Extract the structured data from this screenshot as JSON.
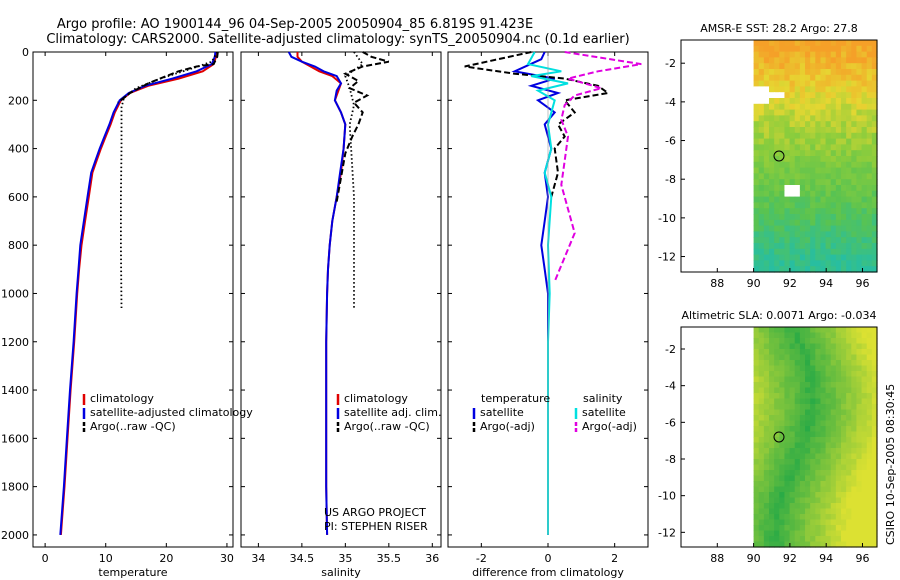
{
  "title": {
    "line1": "Argo profile: AO 1900144_96 04-Sep-2005 20050904_85 6.819S 91.423E",
    "line2": "Climatology: CARS2000. Satellite-adjusted climatology: synTS_20050904.nc (0.1d earlier)"
  },
  "side_label": "CSIRO 10-Sep-2005 08:30:45",
  "colors": {
    "clim": "#e00000",
    "sat": "#0000e0",
    "argo": "#000000",
    "sat_s": "#00e0e0",
    "argo_s": "#e000e0"
  },
  "chart_data": [
    {
      "type": "line",
      "name": "temperature",
      "xlabel": "temperature",
      "xlim": [
        -2,
        31
      ],
      "ylim": [
        0,
        2050
      ],
      "y_inverted": true,
      "xticks": [
        0,
        10,
        20,
        30
      ],
      "yticks": [
        0,
        200,
        400,
        600,
        800,
        1000,
        1200,
        1400,
        1600,
        1800,
        2000
      ],
      "series": [
        {
          "name": "climatology",
          "key": "clim",
          "style": "solid",
          "x": [
            28.3,
            28.2,
            27.8,
            26,
            22,
            17,
            14,
            12.5,
            11.5,
            10.8,
            10,
            9.2,
            8.5,
            7.8,
            7.2,
            6.6,
            6,
            5.6,
            5.3,
            4.8,
            4.2,
            3.7,
            3.2,
            2.6
          ],
          "y": [
            0,
            20,
            50,
            80,
            110,
            140,
            170,
            200,
            250,
            300,
            350,
            400,
            450,
            500,
            600,
            700,
            800,
            900,
            1000,
            1200,
            1400,
            1600,
            1800,
            2000
          ]
        },
        {
          "name": "satellite-adjusted climatology",
          "key": "sat",
          "style": "solid",
          "x": [
            28.1,
            28,
            27.5,
            25,
            21,
            16.5,
            13.8,
            12.3,
            11.3,
            10.6,
            9.8,
            9,
            8.3,
            7.6,
            7,
            6.4,
            5.8,
            5.5,
            5.2,
            4.7,
            4.1,
            3.6,
            3.1,
            2.5
          ],
          "y": [
            0,
            20,
            50,
            80,
            110,
            140,
            170,
            200,
            250,
            300,
            350,
            400,
            450,
            500,
            600,
            700,
            800,
            900,
            1000,
            1200,
            1400,
            1600,
            1800,
            2000
          ]
        },
        {
          "name": "Argo(..raw -QC)",
          "key": "argo",
          "style": "dashed",
          "x": [
            28.5,
            28.4,
            27.8,
            25,
            22,
            20,
            17,
            14,
            12
          ],
          "y": [
            0,
            20,
            50,
            60,
            80,
            100,
            130,
            170,
            210
          ]
        },
        {
          "name": "Argo raw",
          "key": "argo",
          "style": "dotted",
          "x": [
            28.4,
            27.5,
            24,
            19,
            15,
            13,
            12.6,
            12.6,
            12.5,
            12.5,
            12.6
          ],
          "y": [
            0,
            40,
            70,
            110,
            150,
            190,
            230,
            400,
            600,
            800,
            1060
          ]
        }
      ],
      "legend": [
        "climatology",
        "satellite-adjusted climatology",
        "Argo(..raw -QC)"
      ]
    },
    {
      "type": "line",
      "name": "salinity",
      "xlabel": "salinity",
      "xlim": [
        33.8,
        36.1
      ],
      "ylim": [
        0,
        2050
      ],
      "y_inverted": true,
      "xticks": [
        34,
        34.5,
        35,
        35.5,
        36
      ],
      "series": [
        {
          "name": "climatology",
          "key": "clim",
          "style": "solid",
          "x": [
            34.45,
            34.45,
            34.5,
            34.6,
            34.7,
            34.85,
            34.95,
            34.92,
            34.88,
            34.95,
            35,
            34.98,
            34.95,
            34.9,
            34.85,
            34.82,
            34.8,
            34.79,
            34.78,
            34.78,
            34.78,
            34.79
          ],
          "y": [
            0,
            20,
            40,
            60,
            80,
            100,
            130,
            160,
            200,
            250,
            300,
            400,
            500,
            600,
            700,
            800,
            900,
            1000,
            1200,
            1500,
            1800,
            2000
          ]
        },
        {
          "name": "satellite adj. clim.",
          "key": "sat",
          "style": "solid",
          "x": [
            34.35,
            34.38,
            34.5,
            34.65,
            34.75,
            34.9,
            34.95,
            34.9,
            34.88,
            34.95,
            35,
            34.98,
            34.94,
            34.9,
            34.85,
            34.82,
            34.8,
            34.79,
            34.78,
            34.78,
            34.78,
            34.79
          ],
          "y": [
            0,
            20,
            40,
            60,
            80,
            100,
            130,
            160,
            200,
            250,
            300,
            400,
            500,
            600,
            700,
            800,
            900,
            1000,
            1200,
            1500,
            1800,
            2000
          ]
        },
        {
          "name": "Argo(..raw -QC)",
          "key": "argo",
          "style": "dashed",
          "x": [
            35.2,
            35.3,
            35.5,
            35.2,
            35.0,
            35.15,
            35.05,
            35.25,
            35.1,
            35.2,
            35.15,
            35.08,
            35.0,
            34.95,
            34.9
          ],
          "y": [
            0,
            20,
            40,
            60,
            90,
            120,
            150,
            180,
            210,
            250,
            300,
            350,
            420,
            520,
            620
          ]
        },
        {
          "name": "Argo raw",
          "key": "argo",
          "style": "dotted",
          "x": [
            35.1,
            35.2,
            35.0,
            35.05,
            35.1,
            35.05,
            35.1,
            35.1
          ],
          "y": [
            0,
            50,
            100,
            150,
            220,
            300,
            600,
            1060
          ]
        }
      ],
      "legend": [
        "climatology",
        "satellite adj. clim.",
        "Argo(..raw -QC)"
      ],
      "annotations": [
        "US ARGO PROJECT",
        "PI: STEPHEN RISER"
      ]
    },
    {
      "type": "line",
      "name": "difference",
      "xlabel": "difference from climatology",
      "xlim": [
        -3,
        3
      ],
      "ylim": [
        0,
        2050
      ],
      "y_inverted": true,
      "xticks": [
        -2,
        0,
        2
      ],
      "series": [
        {
          "name": "temperature satellite",
          "key": "sat",
          "style": "solid",
          "x": [
            -0.1,
            -0.2,
            -1.0,
            0.2,
            -0.5,
            0.3,
            -0.3,
            0.2,
            -0.1,
            0.1,
            -0.1,
            0.0,
            -0.1,
            -0.2,
            -0.1,
            0.0,
            0.0,
            0.0
          ],
          "y": [
            0,
            30,
            80,
            110,
            140,
            170,
            200,
            250,
            300,
            400,
            500,
            600,
            700,
            800,
            900,
            1000,
            1500,
            2000
          ]
        },
        {
          "name": "temperature Argo(-adj)",
          "key": "argo",
          "style": "dashed",
          "x": [
            -0.5,
            -2.5,
            -1.0,
            0.5,
            1.5,
            1.8,
            0.5,
            0.8,
            0.3,
            0.5,
            0.2,
            0.3,
            0.1
          ],
          "y": [
            0,
            60,
            90,
            110,
            140,
            170,
            200,
            250,
            300,
            350,
            400,
            500,
            600
          ]
        },
        {
          "name": "salinity satellite",
          "key": "sat_s",
          "style": "solid",
          "x": [
            -0.4,
            -0.6,
            0.4,
            -0.5,
            0.6,
            -0.3,
            0.2,
            0.0,
            0.1,
            -0.1,
            0.1,
            0.0,
            0.05,
            0.0,
            0.0,
            0.0
          ],
          "y": [
            0,
            50,
            80,
            100,
            130,
            160,
            200,
            300,
            400,
            500,
            600,
            800,
            1000,
            1200,
            1600,
            2000
          ]
        },
        {
          "name": "salinity Argo(-adj)",
          "key": "argo_s",
          "style": "dashed",
          "x": [
            0.5,
            2.8,
            1.5,
            0.6,
            1.6,
            0.8,
            0.5,
            0.4,
            0.6,
            0.5,
            0.4,
            0.6,
            0.8,
            0.5,
            0.2
          ],
          "y": [
            0,
            50,
            80,
            110,
            150,
            180,
            220,
            280,
            350,
            450,
            550,
            650,
            750,
            850,
            950
          ]
        }
      ],
      "legend": {
        "temperature_header": "temperature",
        "salinity_header": "salinity",
        "t_sat": "satellite",
        "t_argo": "Argo(-adj)",
        "s_sat": "satellite",
        "s_argo": "Argo(-adj)"
      }
    },
    {
      "type": "heatmap",
      "name": "sst_map",
      "title": "AMSR-E SST: 28.2 Argo: 27.8",
      "xlim": [
        86,
        96.8
      ],
      "ylim": [
        -12.8,
        -0.8
      ],
      "xticks": [
        88,
        90,
        92,
        94,
        96
      ],
      "yticks": [
        -2,
        -4,
        -6,
        -8,
        -10,
        -12
      ],
      "data_xrange": [
        90,
        96.8
      ],
      "marker": {
        "lon": 91.4,
        "lat": -6.8
      }
    },
    {
      "type": "heatmap",
      "name": "sla_map",
      "title": "Altimetric SLA: 0.0071 Argo: -0.034",
      "xlim": [
        86,
        96.8
      ],
      "ylim": [
        -12.8,
        -0.8
      ],
      "xticks": [
        88,
        90,
        92,
        94,
        96
      ],
      "yticks": [
        -2,
        -4,
        -6,
        -8,
        -10,
        -12
      ],
      "data_xrange": [
        90,
        96.8
      ],
      "marker": {
        "lon": 91.4,
        "lat": -6.8
      }
    }
  ]
}
